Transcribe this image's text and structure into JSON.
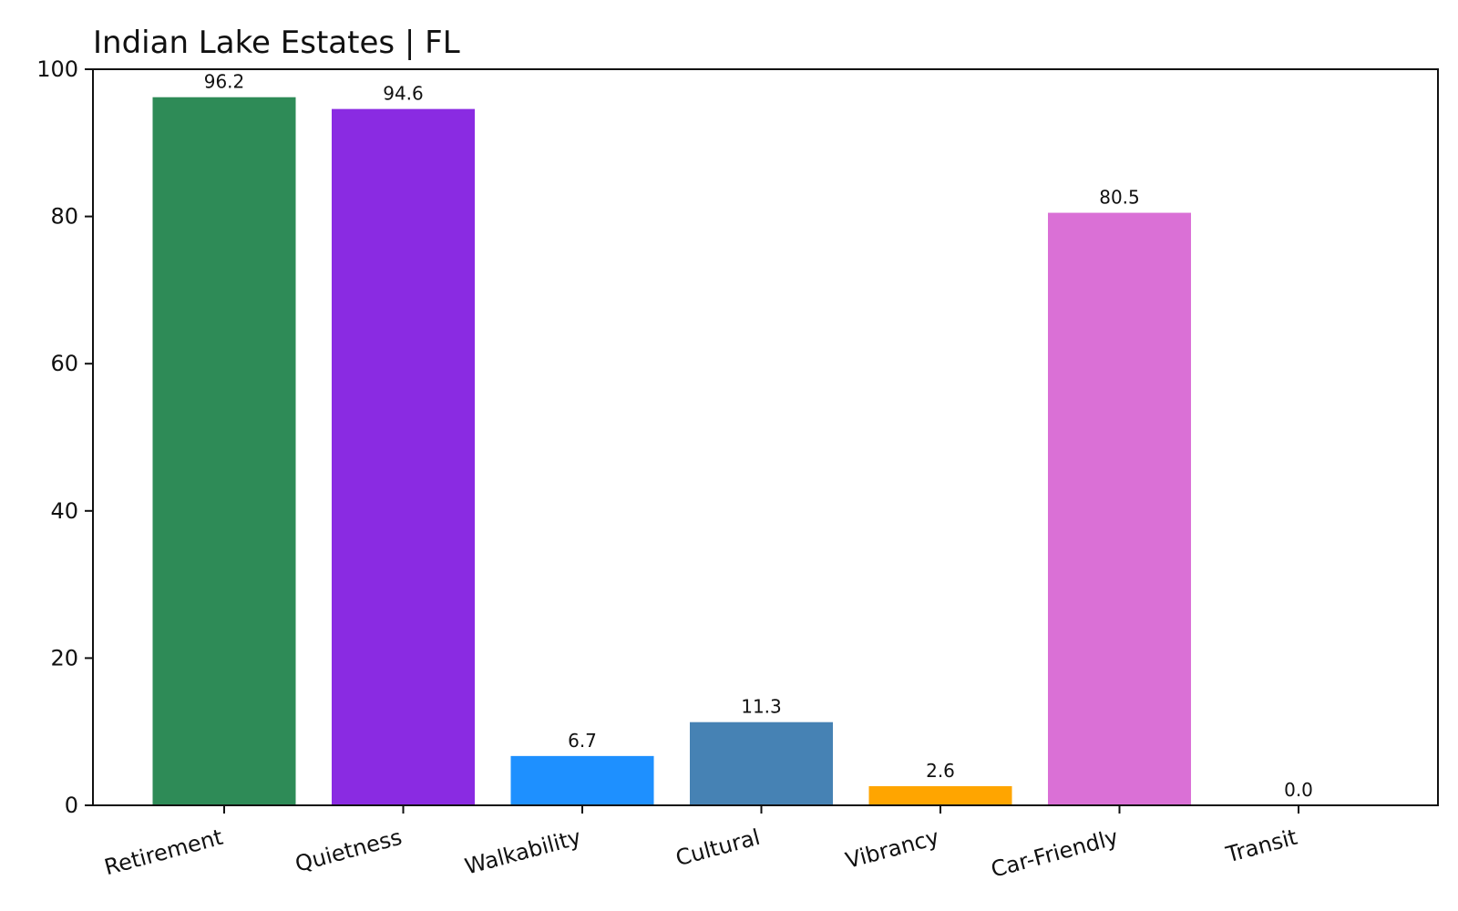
{
  "chart_data": {
    "type": "bar",
    "title": "Indian Lake Estates | FL",
    "xlabel": "",
    "ylabel": "",
    "categories": [
      "Retirement",
      "Quietness",
      "Walkability",
      "Cultural",
      "Vibrancy",
      "Car-Friendly",
      "Transit"
    ],
    "values": [
      96.2,
      94.6,
      6.7,
      11.3,
      2.6,
      80.5,
      0.0
    ],
    "data_labels": [
      "96.2",
      "94.6",
      "6.7",
      "11.3",
      "2.6",
      "80.5",
      "0.0"
    ],
    "colors": [
      "#2e8b57",
      "#8a2be2",
      "#1e90ff",
      "#4682b4",
      "#ffa500",
      "#da70d6",
      "#808080"
    ],
    "ylim": [
      0,
      100
    ],
    "yticks": [
      0,
      20,
      40,
      60,
      80,
      100
    ],
    "ytick_labels": [
      "0",
      "20",
      "40",
      "60",
      "80",
      "100"
    ],
    "grid": false,
    "legend": "none"
  }
}
